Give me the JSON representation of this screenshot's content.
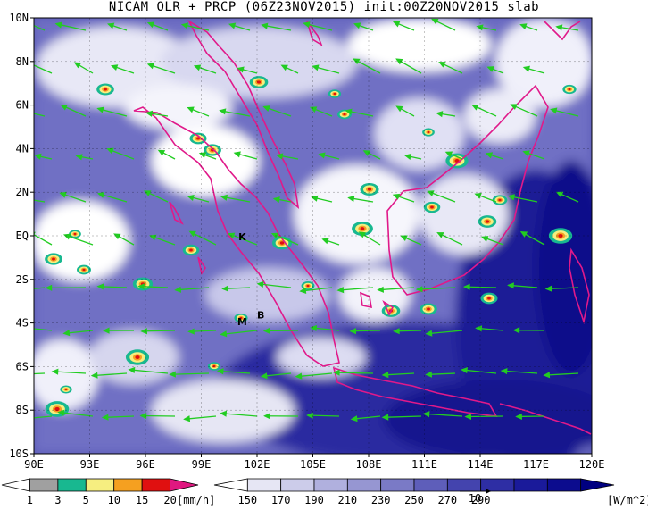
{
  "title": "NICAM OLR + PRCP (06Z23NOV2015) init:00Z20NOV2015 slab",
  "map": {
    "lon_range": [
      90,
      120
    ],
    "lat_range": [
      -10,
      10
    ],
    "lon_ticks": [
      "90E",
      "93E",
      "96E",
      "99E",
      "102E",
      "105E",
      "108E",
      "111E",
      "114E",
      "117E",
      "120E"
    ],
    "lat_ticks": [
      "10N",
      "8N",
      "6N",
      "4N",
      "2N",
      "EQ",
      "2S",
      "4S",
      "6S",
      "8S",
      "10S"
    ],
    "place_labels": [
      {
        "text": "K",
        "lon": 101.2,
        "lat": -0.2
      },
      {
        "text": "M",
        "lon": 101.2,
        "lat": -4.1
      },
      {
        "text": "B",
        "lon": 102.2,
        "lat": -3.8
      }
    ],
    "colors": {
      "coast": "#e0198a",
      "wind": "#22cc22"
    }
  },
  "prcp_colorbar": {
    "labels": [
      "1",
      "3",
      "5",
      "10",
      "15",
      "20"
    ],
    "unit": "[mm/h]",
    "colors": [
      "#ffffff",
      "#a0a0a0",
      "#18b890",
      "#f6ee80",
      "#f5a020",
      "#e01010",
      "#e01880"
    ]
  },
  "olr_colorbar": {
    "labels": [
      "150",
      "170",
      "190",
      "210",
      "230",
      "250",
      "270",
      "290"
    ],
    "unit": "[W/m^2]",
    "vector_ref": "10",
    "colors": [
      "#ffffff",
      "#e6e6f4",
      "#ccccea",
      "#b0b0de",
      "#9696d2",
      "#7a7ac6",
      "#5e5eba",
      "#4444ae",
      "#2e2ea4",
      "#1a1a9a",
      "#0c0c8e",
      "#000080"
    ]
  }
}
